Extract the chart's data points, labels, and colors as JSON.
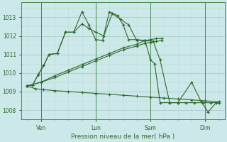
{
  "background_color": "#cce8e8",
  "grid_color_major": "#aacccc",
  "grid_color_minor": "#bbdddd",
  "line_color": "#2d6a2d",
  "xlabel": "Pression niveau de la mer( hPa )",
  "ylim": [
    1007.5,
    1013.8
  ],
  "yticks": [
    1008,
    1009,
    1010,
    1011,
    1012,
    1013
  ],
  "xtick_labels": [
    "Ven",
    "Lun",
    "Sam",
    "Dim"
  ],
  "xtick_positions": [
    1,
    3,
    5,
    7
  ],
  "figsize": [
    3.2,
    2.0
  ],
  "dpi": 100,
  "l1x": [
    0.5,
    0.7,
    0.9,
    1.1,
    1.3,
    1.6,
    1.9,
    2.2,
    2.5,
    2.75,
    3.0,
    3.25,
    3.5,
    3.8,
    4.0,
    4.2,
    4.5,
    4.8,
    5.0,
    5.15,
    5.35,
    5.7,
    6.0,
    6.5,
    6.85,
    7.1,
    7.4
  ],
  "l1y": [
    1009.3,
    1009.35,
    1009.9,
    1010.4,
    1011.0,
    1011.05,
    1012.2,
    1012.2,
    1013.3,
    1012.6,
    1011.8,
    1011.75,
    1013.3,
    1013.1,
    1012.6,
    1011.8,
    1011.8,
    1011.75,
    1010.7,
    1010.5,
    1008.4,
    1008.4,
    1008.4,
    1009.5,
    1008.45,
    1007.9,
    1008.4
  ],
  "l2x": [
    0.5,
    0.7,
    0.9,
    1.1,
    1.3,
    1.6,
    1.9,
    2.2,
    2.5,
    2.75,
    3.0,
    3.3,
    3.6,
    3.9,
    4.2,
    4.5,
    4.8,
    5.1,
    5.35,
    5.7,
    6.0,
    6.3,
    6.6,
    6.9,
    7.2,
    7.5
  ],
  "l2y": [
    1009.3,
    1009.35,
    1009.9,
    1010.4,
    1011.0,
    1011.05,
    1012.2,
    1012.2,
    1012.65,
    1012.4,
    1012.2,
    1012.0,
    1013.2,
    1012.9,
    1012.6,
    1011.75,
    1011.75,
    1011.7,
    1010.7,
    1008.4,
    1008.4,
    1008.4,
    1008.4,
    1008.4,
    1008.4,
    1008.4
  ],
  "l3x": [
    0.5,
    0.8,
    1.1,
    1.5,
    2.0,
    2.5,
    3.0,
    3.5,
    4.0,
    4.5,
    5.0,
    5.5,
    6.0,
    6.5,
    7.0,
    7.5
  ],
  "l3y": [
    1009.3,
    1009.15,
    1009.1,
    1009.05,
    1009.0,
    1008.95,
    1008.9,
    1008.85,
    1008.8,
    1008.75,
    1008.7,
    1008.65,
    1008.6,
    1008.55,
    1008.5,
    1008.45
  ],
  "l4x": [
    0.5,
    1.0,
    1.5,
    2.0,
    2.5,
    3.0,
    3.5,
    4.0,
    4.5,
    4.8,
    5.0,
    5.2,
    5.4
  ],
  "l4y": [
    1009.3,
    1009.5,
    1009.85,
    1010.15,
    1010.45,
    1010.75,
    1011.05,
    1011.35,
    1011.55,
    1011.75,
    1011.8,
    1011.85,
    1011.85
  ],
  "l5x": [
    0.5,
    1.0,
    1.5,
    2.0,
    2.5,
    3.0,
    3.5,
    4.0,
    4.5,
    4.8,
    5.0,
    5.2,
    5.4
  ],
  "l5y": [
    1009.3,
    1009.5,
    1009.75,
    1010.05,
    1010.35,
    1010.65,
    1010.95,
    1011.25,
    1011.45,
    1011.6,
    1011.65,
    1011.7,
    1011.75
  ]
}
